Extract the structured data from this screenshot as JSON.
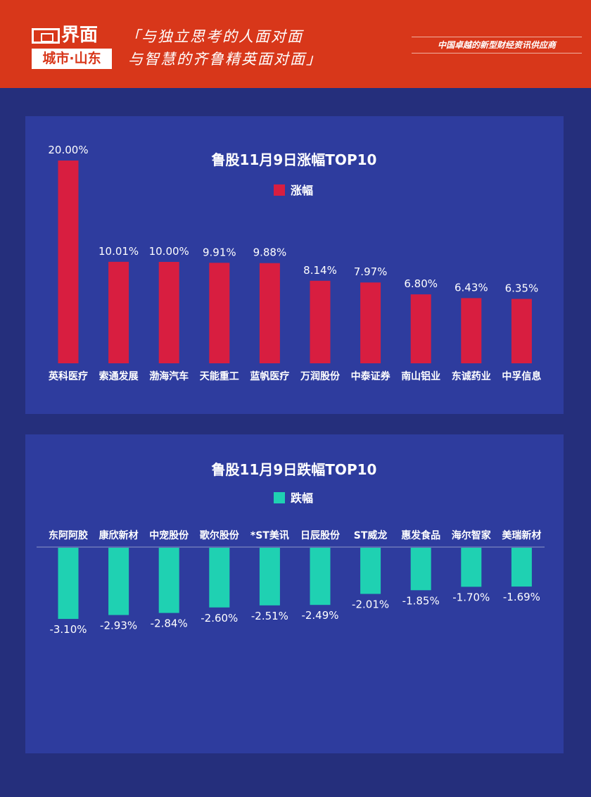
{
  "header": {
    "logo_main": "界面",
    "logo_sub": "城市·山东",
    "slogan_line1": "「与独立思考的人面对面",
    "slogan_line2": "与智慧的齐鲁精英面对面」",
    "tagline": "中国卓越的新型财经资讯供应商"
  },
  "chart_data": [
    {
      "type": "bar",
      "title": "鲁股11月9日涨幅TOP10",
      "categories": [
        "英科医疗",
        "索通发展",
        "渤海汽车",
        "天能重工",
        "蓝帆医疗",
        "万润股份",
        "中泰证券",
        "南山铝业",
        "东诚药业",
        "中孚信息"
      ],
      "series": [
        {
          "name": "涨幅",
          "color": "#d81e40",
          "values": [
            20.0,
            10.01,
            10.0,
            9.91,
            9.88,
            8.14,
            7.97,
            6.8,
            6.43,
            6.35
          ]
        }
      ],
      "data_labels": [
        "20.00%",
        "10.01%",
        "10.00%",
        "9.91%",
        "9.88%",
        "8.14%",
        "7.97%",
        "6.80%",
        "6.43%",
        "6.35%"
      ],
      "legend": "top",
      "grid": false
    },
    {
      "type": "bar",
      "title": "鲁股11月9日跌幅TOP10",
      "categories": [
        "东阿阿胶",
        "康欣新材",
        "中宠股份",
        "歌尔股份",
        "*ST美讯",
        "日辰股份",
        "ST威龙",
        "惠发食品",
        "海尔智家",
        "美瑞新材"
      ],
      "series": [
        {
          "name": "跌幅",
          "color": "#1fd1b2",
          "values": [
            -3.1,
            -2.93,
            -2.84,
            -2.6,
            -2.51,
            -2.49,
            -2.01,
            -1.85,
            -1.7,
            -1.69
          ]
        }
      ],
      "data_labels": [
        "-3.10%",
        "-2.93%",
        "-2.84%",
        "-2.60%",
        "-2.51%",
        "-2.49%",
        "-2.01%",
        "-1.85%",
        "-1.70%",
        "-1.69%"
      ],
      "legend": "top",
      "grid": false
    }
  ]
}
